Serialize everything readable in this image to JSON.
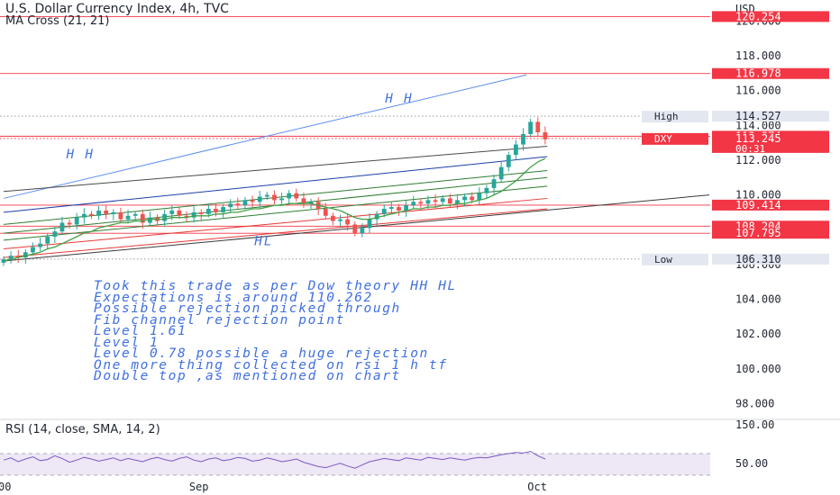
{
  "header": {
    "title": "U.S. Dollar Currency Index, 4h, TVC",
    "indicator": "MA Cross (21, 21)"
  },
  "rsi_panel": {
    "title": "RSI (14, close, SMA, 14, 2)"
  },
  "notes": [
    "Took this trade as per Dow theory HH HL",
    "Expectations is  around 110.262",
    "Possible rejection picked through",
    "Fib channel rejection point",
    "Level 1.61",
    "Level 1",
    "Level 0.78 possible a huge rejection",
    "One more thing collected on rsi 1 h tf",
    "Double top ,as mentioned on chart"
  ],
  "colors": {
    "candle_up": "#26a69a",
    "candle_down": "#ef5350",
    "ma": "#43a047",
    "label_red": "#f23645",
    "label_grey": "#e3e7ef",
    "annotation_blue": "#3f6fe0",
    "rsi_line": "#7e57c2"
  },
  "chart_data": {
    "type": "candlestick",
    "symbol": "DXY",
    "timeframe": "4h",
    "y_axis": {
      "unit": "USD",
      "ylim": [
        97.3,
        121.0
      ],
      "ticks": [
        "118.000",
        "116.000",
        "112.000",
        "110.000",
        "104.000",
        "102.000",
        "100.000",
        "98.000"
      ],
      "partially_hidden_ticks": [
        "120.000",
        "114.000",
        "106.000"
      ]
    },
    "x_axis": {
      "labels": [
        "00",
        "Sep",
        "Oct"
      ],
      "label_at_index": [
        0,
        44,
        122
      ],
      "index_count": 135
    },
    "price_labels": [
      {
        "value": 120.254,
        "text": "120.254",
        "style": "red"
      },
      {
        "value": 116.978,
        "text": "116.978",
        "style": "red"
      },
      {
        "value": 114.527,
        "text": "114.527",
        "style": "grey",
        "tag": "High"
      },
      {
        "value": 113.374,
        "text": "113.374",
        "style": "red"
      },
      {
        "value": 113.245,
        "text": "113.245",
        "style": "red",
        "tag": "DXY",
        "sub": "00:31"
      },
      {
        "value": 109.414,
        "text": "109.414",
        "style": "red"
      },
      {
        "value": 108.204,
        "text": "108.204",
        "style": "red"
      },
      {
        "value": 107.795,
        "text": "107.795",
        "style": "red"
      },
      {
        "value": 106.31,
        "text": "106.310",
        "style": "grey",
        "tag": "Low"
      }
    ],
    "horizontal_lines": [
      {
        "value": 120.254,
        "color": "#f23645",
        "style": "solid"
      },
      {
        "value": 116.978,
        "color": "#f23645",
        "style": "solid"
      },
      {
        "value": 114.527,
        "color": "#9598a1",
        "style": "dotted"
      },
      {
        "value": 113.374,
        "color": "#f23645",
        "style": "solid"
      },
      {
        "value": 113.245,
        "color": "#f23645",
        "style": "dotted"
      },
      {
        "value": 109.414,
        "color": "#f23645",
        "style": "solid"
      },
      {
        "value": 108.204,
        "color": "#f23645",
        "style": "solid"
      },
      {
        "value": 107.795,
        "color": "#f23645",
        "style": "solid"
      },
      {
        "value": 106.31,
        "color": "#9598a1",
        "style": "dotted"
      }
    ],
    "trend_lines": [
      {
        "from": [
          0,
          109.8
        ],
        "to": [
          100,
          116.9
        ],
        "color": "#5b8def"
      },
      {
        "from": [
          0,
          110.2
        ],
        "to": [
          104,
          112.8
        ],
        "color": "#4a4a4a"
      },
      {
        "from": [
          0,
          109.0
        ],
        "to": [
          104,
          112.2
        ],
        "color": "#1e3fa8"
      },
      {
        "from": [
          0,
          108.3
        ],
        "to": [
          104,
          111.4
        ],
        "color": "#2e7d32"
      },
      {
        "from": [
          0,
          107.8
        ],
        "to": [
          104,
          111.0
        ],
        "color": "#2e7d32"
      },
      {
        "from": [
          0,
          107.4
        ],
        "to": [
          104,
          110.5
        ],
        "color": "#2e7d32"
      },
      {
        "from": [
          0,
          106.9
        ],
        "to": [
          104,
          109.8
        ],
        "color": "#e53935"
      },
      {
        "from": [
          0,
          106.4
        ],
        "to": [
          104,
          109.2
        ],
        "color": "#e53935"
      },
      {
        "from": [
          0,
          106.2
        ],
        "to": [
          135,
          110.0
        ],
        "color": "#3a3a3a"
      }
    ],
    "annotations": [
      {
        "text": "H H",
        "index": 73,
        "value": 115.3
      },
      {
        "text": "H H",
        "index": 12,
        "value": 112.1
      },
      {
        "text": "HL",
        "index": 48,
        "value": 107.1
      }
    ],
    "candles_close": [
      106.3,
      106.5,
      106.4,
      106.7,
      107.0,
      107.2,
      107.6,
      107.9,
      108.4,
      108.3,
      108.7,
      108.9,
      108.8,
      109.1,
      108.9,
      109.0,
      108.6,
      108.8,
      108.9,
      108.4,
      108.7,
      108.5,
      108.9,
      109.1,
      108.8,
      108.7,
      109.0,
      108.9,
      109.2,
      109.0,
      109.3,
      109.5,
      109.4,
      109.7,
      109.6,
      109.9,
      110.0,
      109.7,
      109.8,
      110.1,
      109.8,
      109.5,
      109.6,
      109.2,
      108.8,
      108.5,
      108.6,
      108.3,
      107.8,
      108.1,
      108.6,
      108.9,
      109.2,
      109.3,
      109.1,
      109.4,
      109.6,
      109.5,
      109.7,
      109.6,
      109.8,
      109.5,
      109.7,
      109.9,
      109.7,
      110.1,
      110.4,
      110.9,
      111.6,
      112.3,
      112.9,
      113.5,
      114.2,
      113.6,
      113.2
    ],
    "ma_21": [
      106.2,
      106.3,
      106.4,
      106.5,
      106.6,
      106.7,
      106.9,
      107.0,
      107.2,
      107.4,
      107.6,
      107.8,
      107.9,
      108.1,
      108.2,
      108.3,
      108.4,
      108.4,
      108.5,
      108.5,
      108.6,
      108.6,
      108.6,
      108.7,
      108.7,
      108.7,
      108.8,
      108.8,
      108.8,
      108.9,
      108.9,
      109.0,
      109.0,
      109.1,
      109.2,
      109.2,
      109.3,
      109.4,
      109.4,
      109.5,
      109.5,
      109.5,
      109.5,
      109.4,
      109.3,
      109.2,
      109.1,
      108.9,
      108.7,
      108.6,
      108.6,
      108.7,
      108.8,
      108.9,
      109.0,
      109.1,
      109.2,
      109.2,
      109.3,
      109.3,
      109.4,
      109.4,
      109.5,
      109.5,
      109.6,
      109.7,
      109.8,
      110.0,
      110.2,
      110.5,
      110.8,
      111.2,
      111.6,
      111.9,
      112.1
    ],
    "rsi": {
      "title": "RSI (14, close, SMA, 14, 2)",
      "ylim": [
        30,
        80
      ],
      "ticks": [
        "150.00",
        "50.00"
      ],
      "bands": [
        70,
        30
      ],
      "values": [
        58,
        62,
        55,
        60,
        64,
        57,
        59,
        66,
        61,
        54,
        58,
        63,
        60,
        56,
        59,
        62,
        57,
        61,
        58,
        55,
        60,
        63,
        59,
        56,
        61,
        64,
        58,
        55,
        60,
        62,
        57,
        59,
        63,
        61,
        56,
        58,
        62,
        59,
        55,
        57,
        60,
        54,
        50,
        46,
        44,
        48,
        52,
        47,
        43,
        49,
        55,
        58,
        61,
        59,
        57,
        62,
        60,
        58,
        63,
        61,
        59,
        62,
        60,
        58,
        61,
        63,
        62,
        65,
        68,
        70,
        72,
        71,
        74,
        66,
        60
      ]
    }
  }
}
